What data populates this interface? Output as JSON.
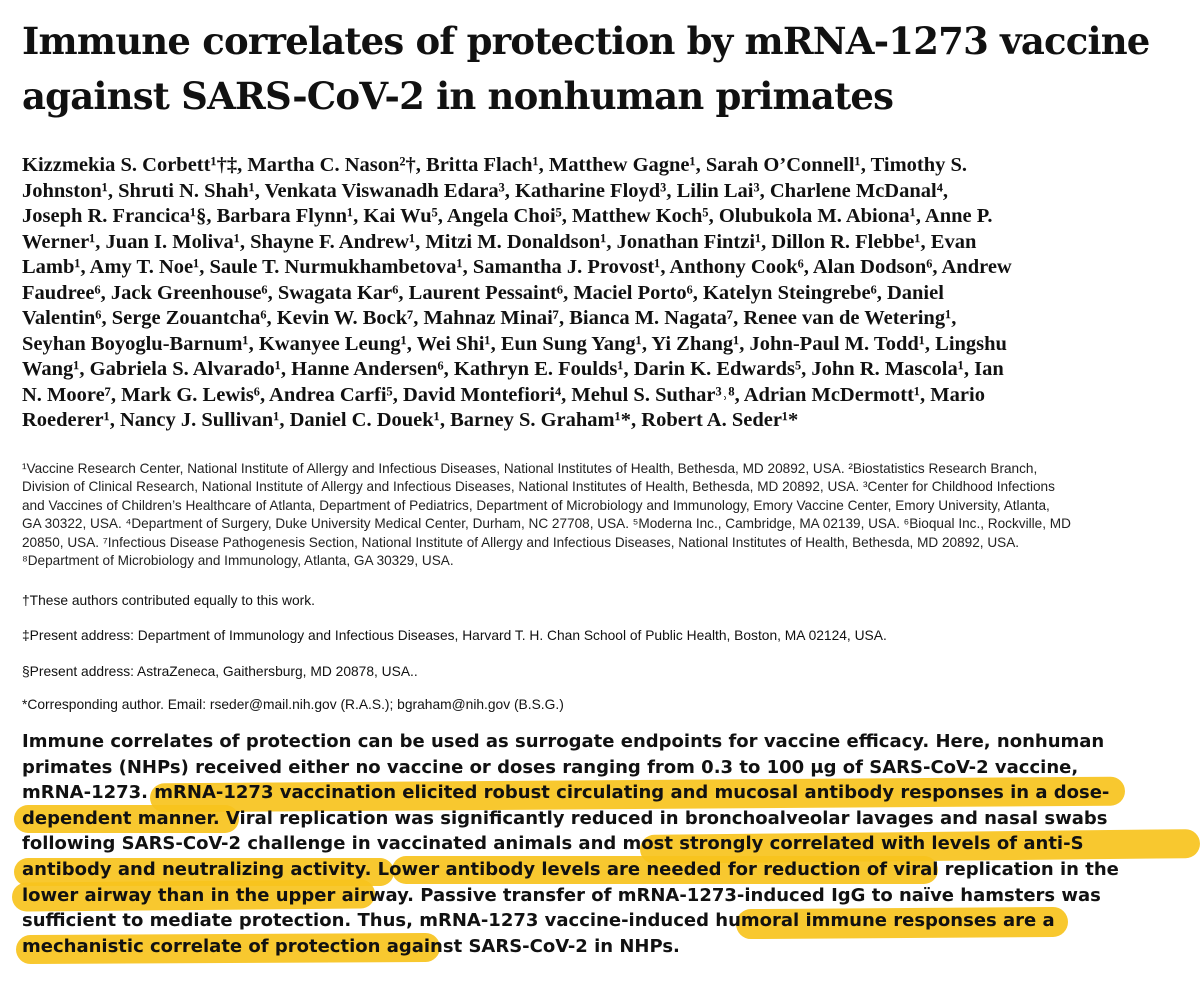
{
  "title": {
    "line1": "Immune correlates of protection by mRNA-1273 vaccine",
    "line2": "against SARS-CoV-2 in nonhuman primates"
  },
  "authors_lines": [
    "Kizzmekia S. Corbett¹†‡, Martha C. Nason²†, Britta Flach¹, Matthew Gagne¹, Sarah O’Connell¹, Timothy S.",
    "Johnston¹, Shruti N. Shah¹, Venkata Viswanadh Edara³, Katharine Floyd³, Lilin Lai³, Charlene McDanal⁴,",
    "Joseph R. Francica¹§, Barbara Flynn¹, Kai Wu⁵, Angela Choi⁵, Matthew Koch⁵, Olubukola M. Abiona¹, Anne P.",
    "Werner¹, Juan I. Moliva¹, Shayne F. Andrew¹, Mitzi M. Donaldson¹, Jonathan Fintzi¹, Dillon R. Flebbe¹, Evan",
    "Lamb¹, Amy T. Noe¹, Saule T. Nurmukhambetova¹, Samantha J. Provost¹, Anthony Cook⁶, Alan Dodson⁶, Andrew",
    "Faudree⁶, Jack Greenhouse⁶, Swagata Kar⁶, Laurent Pessaint⁶, Maciel Porto⁶, Katelyn Steingrebe⁶, Daniel",
    "Valentin⁶, Serge Zouantcha⁶, Kevin W. Bock⁷, Mahnaz Minai⁷, Bianca M. Nagata⁷, Renee van de Wetering¹,",
    "Seyhan Boyoglu-Barnum¹, Kwanyee Leung¹, Wei Shi¹, Eun Sung Yang¹, Yi Zhang¹, John-Paul M. Todd¹, Lingshu",
    "Wang¹, Gabriela S. Alvarado¹, Hanne Andersen⁶, Kathryn E. Foulds¹, Darin K. Edwards⁵, John R. Mascola¹, Ian",
    "N. Moore⁷, Mark G. Lewis⁶, Andrea Carfi⁵, David Montefiori⁴, Mehul S. Suthar³˒⁸, Adrian McDermott¹, Mario",
    "Roederer¹, Nancy J. Sullivan¹, Daniel C. Douek¹, Barney S. Graham¹*, Robert A. Seder¹*"
  ],
  "affiliation_lines": [
    "¹Vaccine Research Center, National Institute of Allergy and Infectious Diseases, National Institutes of Health, Bethesda, MD 20892, USA. ²Biostatistics Research Branch,",
    "Division of Clinical Research, National Institute of Allergy and Infectious Diseases, National Institutes of Health, Bethesda, MD 20892, USA. ³Center for Childhood Infections",
    "and Vaccines of Children’s Healthcare of Atlanta, Department of Pediatrics, Department of Microbiology and Immunology, Emory Vaccine Center, Emory University, Atlanta,",
    "GA 30322, USA. ⁴Department of Surgery, Duke University Medical Center, Durham, NC 27708, USA. ⁵Moderna Inc., Cambridge, MA 02139, USA. ⁶Bioqual Inc., Rockville, MD",
    "20850, USA. ⁷Infectious Disease Pathogenesis Section, National Institute of Allergy and Infectious Diseases,  National Institutes of Health, Bethesda, MD 20892, USA.",
    "⁸Department of Microbiology and Immunology, Atlanta, GA 30329, USA."
  ],
  "notes": {
    "equal": "†These authors contributed equally to this work.",
    "present1": "‡Present address: Department of Immunology and Infectious Diseases, Harvard T. H. Chan School of Public Health, Boston, MA 02124, USA.",
    "present2": "§Present address: AstraZeneca, Gaithersburg, MD 20878, USA..",
    "corresponding": "*Corresponding author. Email: rseder@mail.nih.gov (R.A.S.); bgraham@nih.gov (B.S.G.)"
  },
  "abstract_lines": [
    "Immune correlates of protection can be used as surrogate endpoints for vaccine efficacy. Here, nonhuman",
    "primates (NHPs) received either no vaccine or doses ranging from 0.3 to 100 μg of SARS-CoV-2 vaccine,",
    "mRNA-1273. mRNA-1273 vaccination elicited robust circulating and mucosal antibody responses in a dose-",
    "dependent manner. Viral replication was significantly reduced in bronchoalveolar lavages and nasal swabs",
    "following SARS-CoV-2 challenge in vaccinated animals and most strongly correlated with levels of anti-S",
    "antibody and neutralizing activity. Lower antibody levels are needed for reduction of viral replication in the",
    "lower airway than in the upper airway. Passive transfer of mRNA-1273-induced IgG to naïve hamsters was",
    "sufficient to mediate protection. Thus, mRNA-1273 vaccine-induced humoral immune responses are a",
    "mechanistic correlate of protection against SARS-CoV-2 in NHPs."
  ],
  "highlight_color": "#f7c31d"
}
